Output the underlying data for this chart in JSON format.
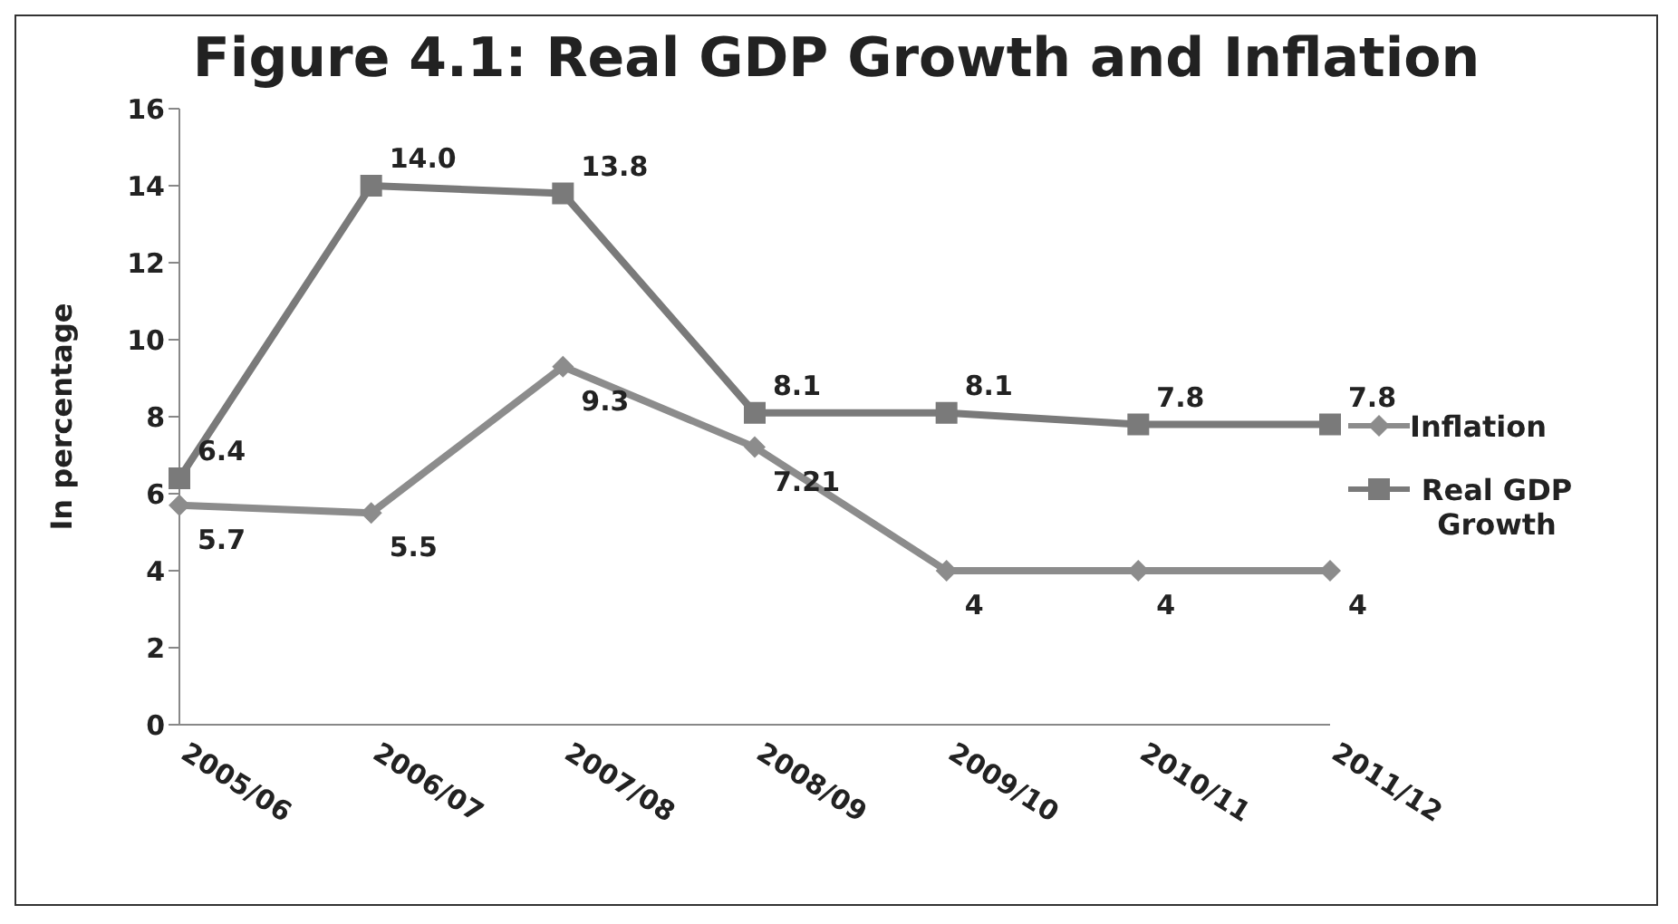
{
  "chart_data": {
    "type": "line",
    "title": "Figure 4.1: Real GDP Growth and Inflation",
    "ylabel": "In percentage",
    "categories": [
      "2005/06",
      "2006/07",
      "2007/08",
      "2008/09",
      "2009/10",
      "2010/11",
      "2011/12"
    ],
    "series": [
      {
        "name": "Inflation",
        "color": "#8c8c8c",
        "marker": "diamond",
        "values": [
          5.7,
          5.5,
          9.3,
          7.21,
          4,
          4,
          4
        ],
        "value_labels": [
          "5.7",
          "5.5",
          "9.3",
          "7.21",
          "4",
          "4",
          "4"
        ]
      },
      {
        "name": "Real GDP Growth",
        "color": "#7a7a7a",
        "marker": "square",
        "values": [
          6.4,
          14.0,
          13.8,
          8.1,
          8.1,
          7.8,
          7.8
        ],
        "value_labels": [
          "6.4",
          "14.0",
          "13.8",
          "8.1",
          "8.1",
          "7.8",
          "7.8"
        ]
      }
    ],
    "ylim": [
      0,
      16
    ],
    "yticks": [
      0,
      2,
      4,
      6,
      8,
      10,
      12,
      14,
      16
    ],
    "grid": false,
    "legend": "right",
    "line_style": "solid"
  }
}
